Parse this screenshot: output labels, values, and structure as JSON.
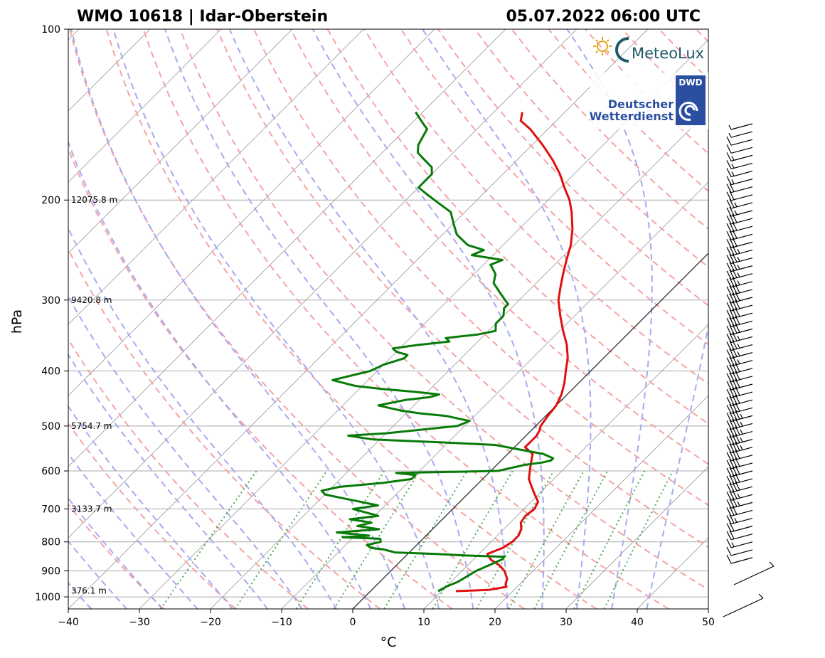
{
  "chart_data": {
    "type": "skew-t log-p sounding",
    "title_left": "WMO 10618 | Idar-Oberstein",
    "title_right": "05.07.2022 06:00 UTC",
    "xlabel": "°C",
    "ylabel": "hPa",
    "xlim": [
      -40,
      50
    ],
    "ylim_hpa": [
      1050,
      100
    ],
    "x_ticks": [
      "−40",
      "−30",
      "−20",
      "−10",
      "0",
      "10",
      "20",
      "30",
      "40",
      "50"
    ],
    "x_tick_values": [
      -40,
      -30,
      -20,
      -10,
      0,
      10,
      20,
      30,
      40,
      50
    ],
    "y_ticks": [
      "100",
      "200",
      "300",
      "400",
      "500",
      "600",
      "700",
      "800",
      "900",
      "1000"
    ],
    "y_tick_values": [
      100,
      200,
      300,
      400,
      500,
      600,
      700,
      800,
      900,
      1000
    ],
    "height_labels": [
      {
        "p": 200,
        "text": "12075.8 m"
      },
      {
        "p": 300,
        "text": "9420.8 m"
      },
      {
        "p": 500,
        "text": "5754.7 m"
      },
      {
        "p": 700,
        "text": "3133.7 m"
      },
      {
        "p": 975,
        "text": "376.1 m"
      }
    ],
    "series": [
      {
        "name": "temperature",
        "color": "#e01010",
        "points": [
          [
            977,
            12
          ],
          [
            972,
            16.5
          ],
          [
            960,
            18.5
          ],
          [
            950,
            18
          ],
          [
            930,
            17.5
          ],
          [
            900,
            16
          ],
          [
            880,
            14.5
          ],
          [
            860,
            12.5
          ],
          [
            840,
            11.2
          ],
          [
            820,
            12.5
          ],
          [
            800,
            13
          ],
          [
            780,
            13
          ],
          [
            760,
            12.5
          ],
          [
            740,
            11.5
          ],
          [
            720,
            11.2
          ],
          [
            700,
            11.5
          ],
          [
            680,
            11
          ],
          [
            660,
            9.5
          ],
          [
            640,
            8
          ],
          [
            620,
            6.5
          ],
          [
            600,
            5.5
          ],
          [
            580,
            4.5
          ],
          [
            560,
            3.5
          ],
          [
            545,
            1.5
          ],
          [
            530,
            1.5
          ],
          [
            520,
            1.5
          ],
          [
            510,
            1.2
          ],
          [
            500,
            0.7
          ],
          [
            480,
            0.3
          ],
          [
            460,
            0
          ],
          [
            440,
            -0.8
          ],
          [
            420,
            -2
          ],
          [
            400,
            -3.5
          ],
          [
            380,
            -5
          ],
          [
            360,
            -7
          ],
          [
            340,
            -9.5
          ],
          [
            320,
            -12
          ],
          [
            300,
            -14.5
          ],
          [
            285,
            -16
          ],
          [
            270,
            -17.5
          ],
          [
            255,
            -19
          ],
          [
            240,
            -20.5
          ],
          [
            225,
            -22.5
          ],
          [
            210,
            -25
          ],
          [
            200,
            -27
          ],
          [
            190,
            -29.5
          ],
          [
            180,
            -32
          ],
          [
            170,
            -35
          ],
          [
            160,
            -38.5
          ],
          [
            150,
            -42.5
          ],
          [
            145,
            -45
          ],
          [
            140,
            -46
          ]
        ]
      },
      {
        "name": "dewpoint",
        "color": "#087a08",
        "points": [
          [
            977,
            9.5
          ],
          [
            960,
            10
          ],
          [
            940,
            11
          ],
          [
            920,
            11.5
          ],
          [
            900,
            12
          ],
          [
            880,
            13
          ],
          [
            860,
            14
          ],
          [
            850,
            14
          ],
          [
            845,
            8
          ],
          [
            840,
            4
          ],
          [
            835,
            -2
          ],
          [
            830,
            -3
          ],
          [
            825,
            -4
          ],
          [
            820,
            -6
          ],
          [
            810,
            -7
          ],
          [
            800,
            -5.5
          ],
          [
            790,
            -6
          ],
          [
            785,
            -11.5
          ],
          [
            780,
            -8
          ],
          [
            770,
            -13
          ],
          [
            760,
            -7.5
          ],
          [
            750,
            -11
          ],
          [
            740,
            -9.5
          ],
          [
            730,
            -13
          ],
          [
            720,
            -9.5
          ],
          [
            700,
            -14
          ],
          [
            690,
            -11
          ],
          [
            670,
            -17
          ],
          [
            660,
            -20
          ],
          [
            650,
            -21
          ],
          [
            640,
            -19
          ],
          [
            630,
            -13.5
          ],
          [
            620,
            -10
          ],
          [
            610,
            -10
          ],
          [
            605,
            -13
          ],
          [
            600,
            1
          ],
          [
            595,
            2
          ],
          [
            590,
            3
          ],
          [
            585,
            4
          ],
          [
            580,
            6
          ],
          [
            575,
            7
          ],
          [
            570,
            7
          ],
          [
            560,
            5
          ],
          [
            550,
            1
          ],
          [
            540,
            -3
          ],
          [
            535,
            -10
          ],
          [
            530,
            -18
          ],
          [
            528,
            -21
          ],
          [
            525,
            -22.5
          ],
          [
            520,
            -25
          ],
          [
            515,
            -20
          ],
          [
            505,
            -14
          ],
          [
            500,
            -11
          ],
          [
            490,
            -10
          ],
          [
            480,
            -14
          ],
          [
            475,
            -18
          ],
          [
            470,
            -21
          ],
          [
            465,
            -23
          ],
          [
            460,
            -25
          ],
          [
            450,
            -22
          ],
          [
            445,
            -19
          ],
          [
            440,
            -18
          ],
          [
            435,
            -22
          ],
          [
            430,
            -27
          ],
          [
            425,
            -31
          ],
          [
            420,
            -33
          ],
          [
            415,
            -35
          ],
          [
            400,
            -31
          ],
          [
            390,
            -30
          ],
          [
            380,
            -28
          ],
          [
            375,
            -28
          ],
          [
            370,
            -30
          ],
          [
            365,
            -31
          ],
          [
            360,
            -28
          ],
          [
            355,
            -24
          ],
          [
            350,
            -25
          ],
          [
            345,
            -21
          ],
          [
            340,
            -19
          ],
          [
            330,
            -20
          ],
          [
            320,
            -20
          ],
          [
            310,
            -21
          ],
          [
            305,
            -21
          ],
          [
            300,
            -22
          ],
          [
            290,
            -24
          ],
          [
            280,
            -26
          ],
          [
            270,
            -27
          ],
          [
            260,
            -29
          ],
          [
            255,
            -28
          ],
          [
            250,
            -33
          ],
          [
            245,
            -32
          ],
          [
            240,
            -35
          ],
          [
            230,
            -38
          ],
          [
            220,
            -40
          ],
          [
            210,
            -42
          ],
          [
            200,
            -46
          ],
          [
            195,
            -48
          ],
          [
            190,
            -50
          ],
          [
            185,
            -50
          ],
          [
            180,
            -50
          ],
          [
            175,
            -51
          ],
          [
            170,
            -53
          ],
          [
            165,
            -55
          ],
          [
            160,
            -56
          ],
          [
            150,
            -57
          ],
          [
            145,
            -59
          ],
          [
            140,
            -61
          ]
        ]
      }
    ],
    "wind_barbs_speed_kt": [
      5,
      5,
      10,
      10,
      15,
      15,
      15,
      15,
      20,
      20,
      25,
      25,
      30,
      30,
      30,
      30,
      35,
      35,
      35,
      35,
      35,
      40,
      40,
      40,
      40,
      40,
      40,
      35,
      35,
      35,
      35,
      40,
      40,
      40,
      40,
      40,
      40,
      45,
      45,
      45,
      45,
      45,
      40,
      40,
      40,
      40,
      40,
      35,
      35,
      30,
      25,
      20,
      20,
      15,
      10,
      10
    ],
    "logos": {
      "meteolux": "MeteoLux",
      "dwd_box": "DWD",
      "dwd_line1": "Deutscher",
      "dwd_line2": "Wetterdienst"
    },
    "colors": {
      "dry_adiabat": "#f5a3a3",
      "moist_adiabat": "#a9a9ee",
      "mixing_ratio": "#52a852",
      "isotherm": "#8a8a8a",
      "isobar": "#a8a8a8"
    }
  }
}
